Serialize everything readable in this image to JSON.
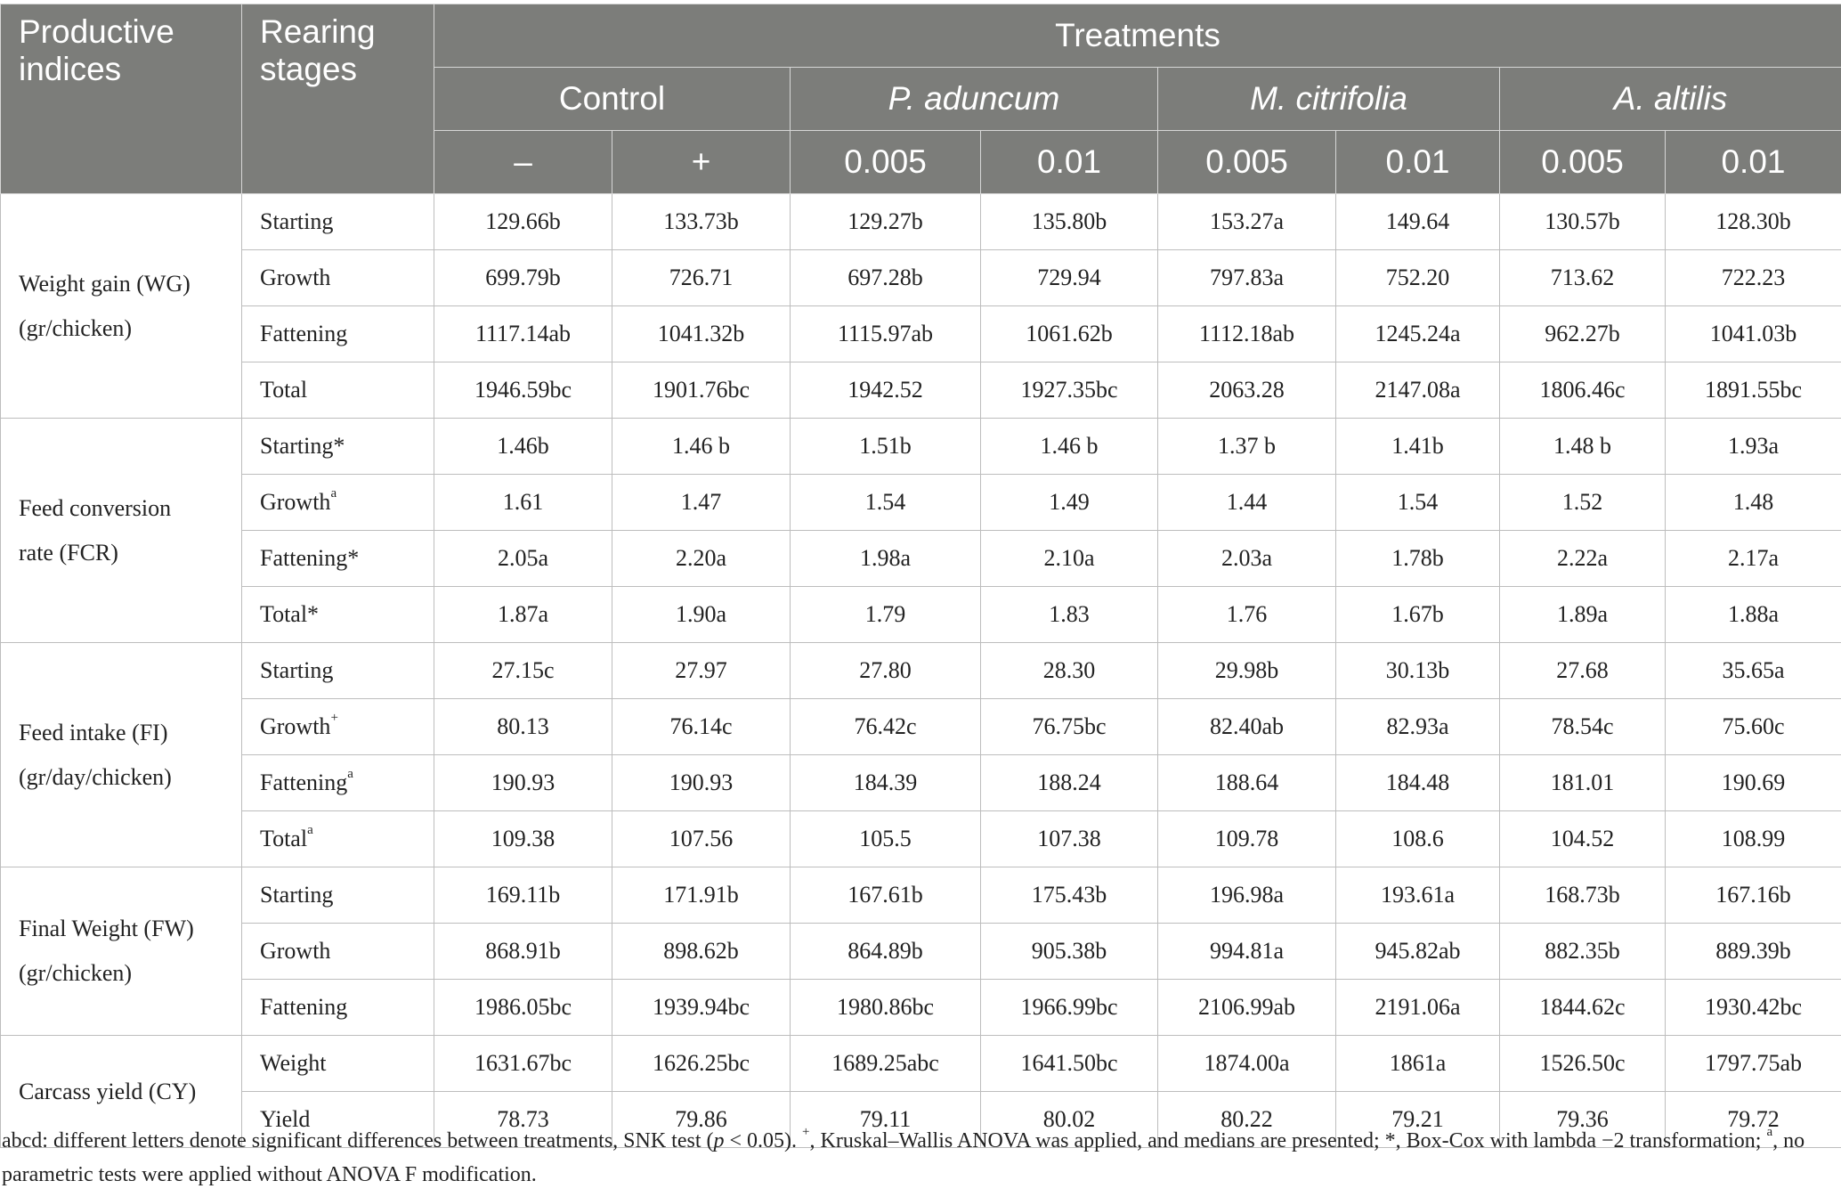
{
  "header": {
    "col1": [
      "Productive",
      "indices"
    ],
    "col2": [
      "Rearing",
      "stages"
    ],
    "treatments_label": "Treatments",
    "groups": [
      {
        "name": "Control",
        "italic": false
      },
      {
        "name": "P. aduncum",
        "italic": true
      },
      {
        "name": "M. citrifolia",
        "italic": true
      },
      {
        "name": "A. altilis",
        "italic": true
      }
    ],
    "doses": [
      "–",
      "+",
      "0.005",
      "0.01",
      "0.005",
      "0.01",
      "0.005",
      "0.01"
    ]
  },
  "sections": [
    {
      "label_lines": [
        "Weight gain (WG)",
        "(gr/chicken)"
      ],
      "rows": [
        {
          "stage": "Starting",
          "mark": "",
          "values": [
            "129.66b",
            "133.73b",
            "129.27b",
            "135.80b",
            "153.27a",
            "149.64",
            "130.57b",
            "128.30b"
          ]
        },
        {
          "stage": "Growth",
          "mark": "",
          "values": [
            "699.79b",
            "726.71",
            "697.28b",
            "729.94",
            "797.83a",
            "752.20",
            "713.62",
            "722.23"
          ]
        },
        {
          "stage": "Fattening",
          "mark": "",
          "values": [
            "1117.14ab",
            "1041.32b",
            "1115.97ab",
            "1061.62b",
            "1112.18ab",
            "1245.24a",
            "962.27b",
            "1041.03b"
          ]
        },
        {
          "stage": "Total",
          "mark": "",
          "values": [
            "1946.59bc",
            "1901.76bc",
            "1942.52",
            "1927.35bc",
            "2063.28",
            "2147.08a",
            "1806.46c",
            "1891.55bc"
          ]
        }
      ]
    },
    {
      "label_lines": [
        "Feed conversion",
        "rate (FCR)"
      ],
      "rows": [
        {
          "stage": "Starting*",
          "mark": "",
          "values": [
            "1.46b",
            "1.46 b",
            "1.51b",
            "1.46 b",
            "1.37 b",
            "1.41b",
            "1.48 b",
            "1.93a"
          ]
        },
        {
          "stage": "Growth",
          "mark": "a",
          "values": [
            "1.61",
            "1.47",
            "1.54",
            "1.49",
            "1.44",
            "1.54",
            "1.52",
            "1.48"
          ]
        },
        {
          "stage": "Fattening*",
          "mark": "",
          "values": [
            "2.05a",
            "2.20a",
            "1.98a",
            "2.10a",
            "2.03a",
            "1.78b",
            "2.22a",
            "2.17a"
          ]
        },
        {
          "stage": "Total*",
          "mark": "",
          "values": [
            "1.87a",
            "1.90a",
            "1.79",
            "1.83",
            "1.76",
            "1.67b",
            "1.89a",
            "1.88a"
          ]
        }
      ]
    },
    {
      "label_lines": [
        "Feed intake (FI)",
        "(gr/day/chicken)"
      ],
      "rows": [
        {
          "stage": "Starting",
          "mark": "",
          "values": [
            "27.15c",
            "27.97",
            "27.80",
            "28.30",
            "29.98b",
            "30.13b",
            "27.68",
            "35.65a"
          ]
        },
        {
          "stage": "Growth",
          "mark": "+",
          "values": [
            "80.13",
            "76.14c",
            "76.42c",
            "76.75bc",
            "82.40ab",
            "82.93a",
            "78.54c",
            "75.60c"
          ]
        },
        {
          "stage": "Fattening",
          "mark": "a",
          "values": [
            "190.93",
            "190.93",
            "184.39",
            "188.24",
            "188.64",
            "184.48",
            "181.01",
            "190.69"
          ]
        },
        {
          "stage": "Total",
          "mark": "a",
          "values": [
            "109.38",
            "107.56",
            "105.5",
            "107.38",
            "109.78",
            "108.6",
            "104.52",
            "108.99"
          ]
        }
      ]
    },
    {
      "label_lines": [
        "Final Weight (FW)",
        "(gr/chicken)"
      ],
      "rows": [
        {
          "stage": "Starting",
          "mark": "",
          "values": [
            "169.11b",
            "171.91b",
            "167.61b",
            "175.43b",
            "196.98a",
            "193.61a",
            "168.73b",
            "167.16b"
          ]
        },
        {
          "stage": "Growth",
          "mark": "",
          "values": [
            "868.91b",
            "898.62b",
            "864.89b",
            "905.38b",
            "994.81a",
            "945.82ab",
            "882.35b",
            "889.39b"
          ]
        },
        {
          "stage": "Fattening",
          "mark": "",
          "values": [
            "1986.05bc",
            "1939.94bc",
            "1980.86bc",
            "1966.99bc",
            "2106.99ab",
            "2191.06a",
            "1844.62c",
            "1930.42bc"
          ]
        }
      ]
    },
    {
      "label_lines": [
        "Carcass yield (CY)"
      ],
      "rows": [
        {
          "stage": "Weight",
          "mark": "",
          "values": [
            "1631.67bc",
            "1626.25bc",
            "1689.25abc",
            "1641.50bc",
            "1874.00a",
            "1861a",
            "1526.50c",
            "1797.75ab"
          ]
        },
        {
          "stage": "Yield",
          "mark": "",
          "values": [
            "78.73",
            "79.86",
            "79.11",
            "80.02",
            "80.22",
            "79.21",
            "79.36",
            "79.72"
          ]
        }
      ]
    }
  ],
  "footnote": {
    "part1": "abcd: different letters denote significant differences between treatments, SNK test (",
    "p": "p",
    "part2": " < 0.05). ",
    "plus": "+",
    "part3": ", Kruskal–Wallis ANOVA was applied, and medians are presented; *, Box-Cox with lambda −2 transformation; ",
    "a": "a",
    "part4": ", no parametric tests were applied without ANOVA F modification."
  }
}
